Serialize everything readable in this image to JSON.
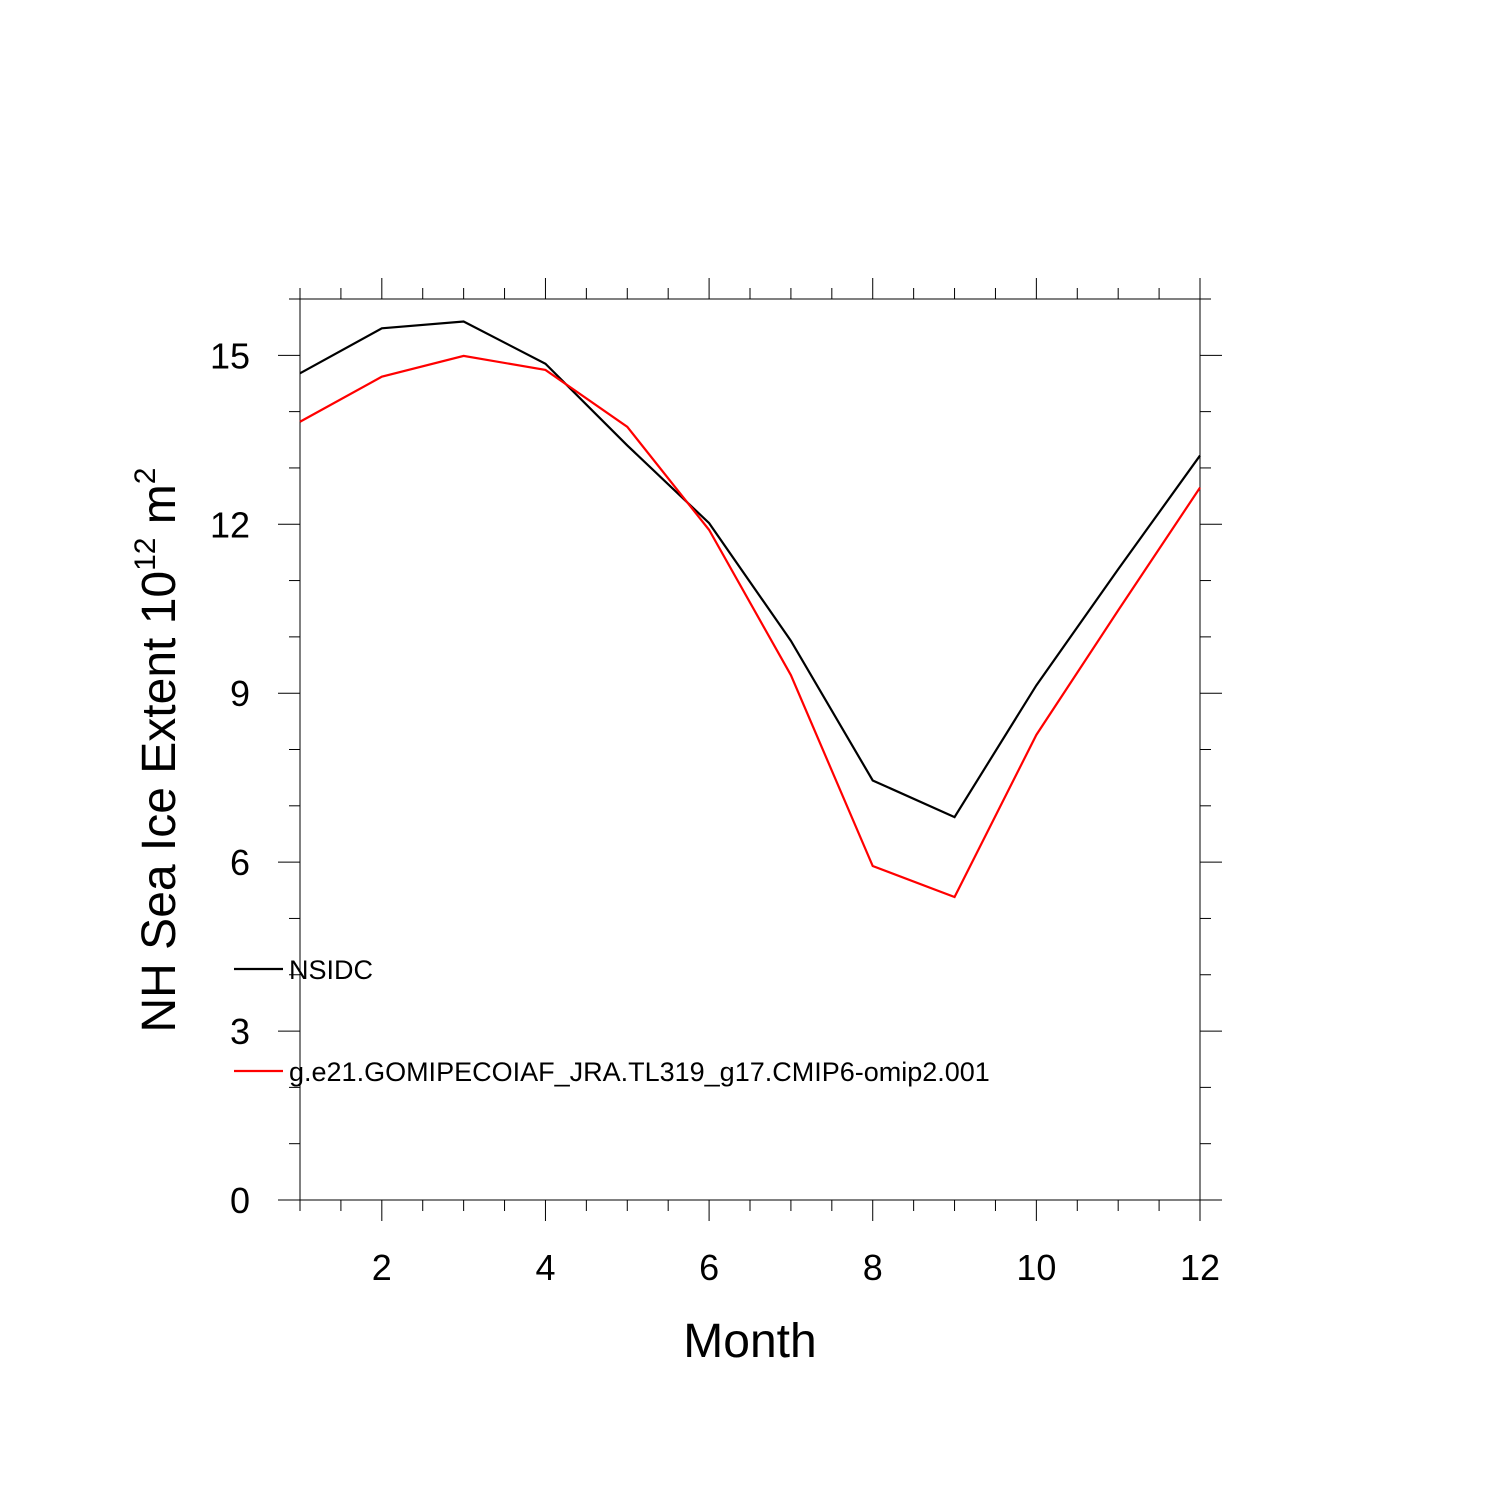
{
  "chart_data": {
    "type": "line",
    "x": [
      1,
      2,
      3,
      4,
      5,
      6,
      7,
      8,
      9,
      10,
      11,
      12
    ],
    "xlim": [
      1,
      12
    ],
    "ylim": [
      0,
      16
    ],
    "xticks": [
      2,
      4,
      6,
      8,
      10,
      12
    ],
    "yticks": [
      0,
      3,
      6,
      9,
      12,
      15
    ],
    "x_tick_labels": [
      "2",
      "4",
      "6",
      "8",
      "10",
      "12"
    ],
    "y_tick_labels": [
      "0",
      "3",
      "6",
      "9",
      "12",
      "15"
    ],
    "xlabel": "Month",
    "ylabel": "NH Sea Ice Extent 10",
    "ylabel_superscript_1": "12",
    "ylabel_unit": " m",
    "ylabel_superscript_2": "2",
    "grid": false,
    "legend_placement": "lower-left inside",
    "series": [
      {
        "name": "NSIDC",
        "color": "#000000",
        "values": [
          14.68,
          15.48,
          15.6,
          14.85,
          13.4,
          12.02,
          9.93,
          7.45,
          6.8,
          9.14,
          11.2,
          13.22
        ]
      },
      {
        "name": "g.e21.GOMIPECOIAF_JRA.TL319_g17.CMIP6-omip2.001",
        "color": "#ff0000",
        "values": [
          13.82,
          14.62,
          14.99,
          14.74,
          13.73,
          11.9,
          9.32,
          5.93,
          5.38,
          8.26,
          10.47,
          12.65
        ]
      }
    ]
  }
}
